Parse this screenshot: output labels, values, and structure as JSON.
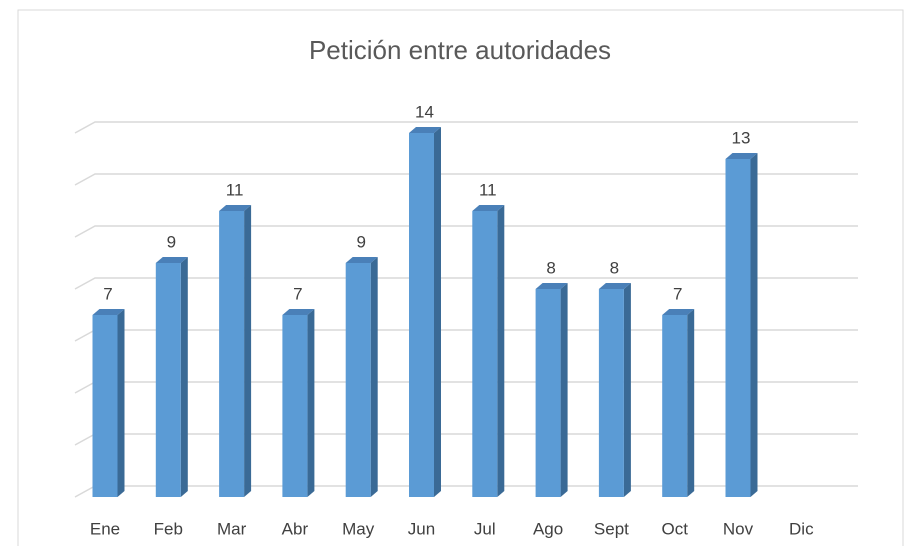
{
  "chart_data": {
    "type": "bar",
    "title": "Petición entre autoridades",
    "categories": [
      "Ene",
      "Feb",
      "Mar",
      "Abr",
      "May",
      "Jun",
      "Jul",
      "Ago",
      "Sept",
      "Oct",
      "Nov",
      "Dic"
    ],
    "values": [
      7,
      9,
      11,
      7,
      9,
      14,
      11,
      8,
      8,
      7,
      13,
      null
    ],
    "color": "#5b9bd5",
    "ylim": [
      0,
      14
    ],
    "yticks": [
      0,
      2,
      4,
      6,
      8,
      10,
      12,
      14
    ],
    "grid": true
  }
}
